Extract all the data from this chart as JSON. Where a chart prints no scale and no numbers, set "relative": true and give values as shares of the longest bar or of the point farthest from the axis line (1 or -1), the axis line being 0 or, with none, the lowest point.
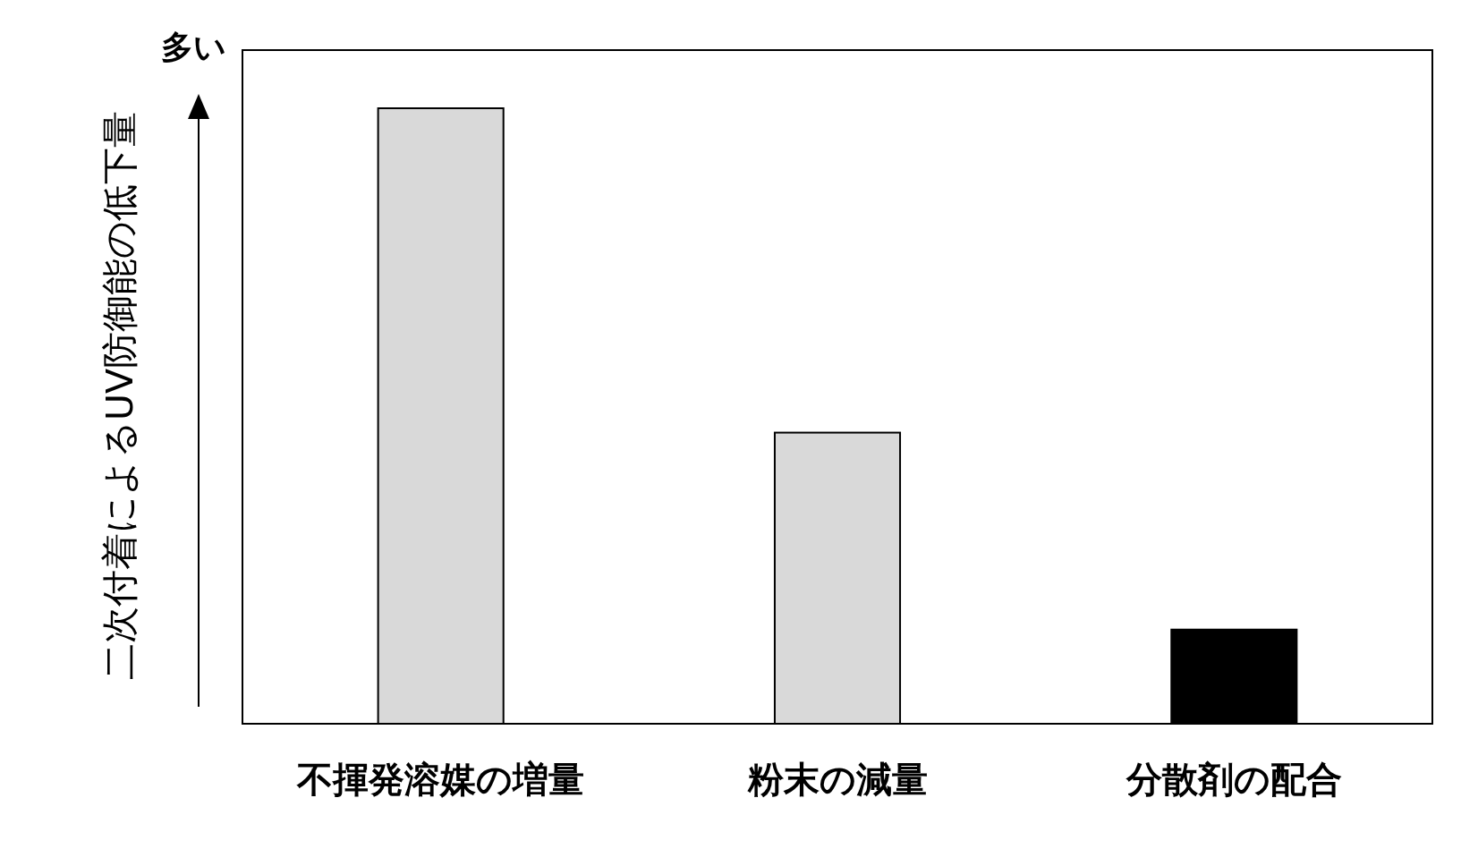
{
  "chart_data": {
    "type": "bar",
    "relative": true,
    "ylabel": "二次付着によるUV防御能の低下量",
    "categories": [
      "不揮発溶媒の増量",
      "粉末の減量",
      "分散剤の配合"
    ],
    "values": [
      1,
      0.473,
      0.153
    ],
    "colors": [
      "#d9d9d9",
      "#d9d9d9",
      "#000000"
    ],
    "annotations": [
      "多い"
    ]
  }
}
